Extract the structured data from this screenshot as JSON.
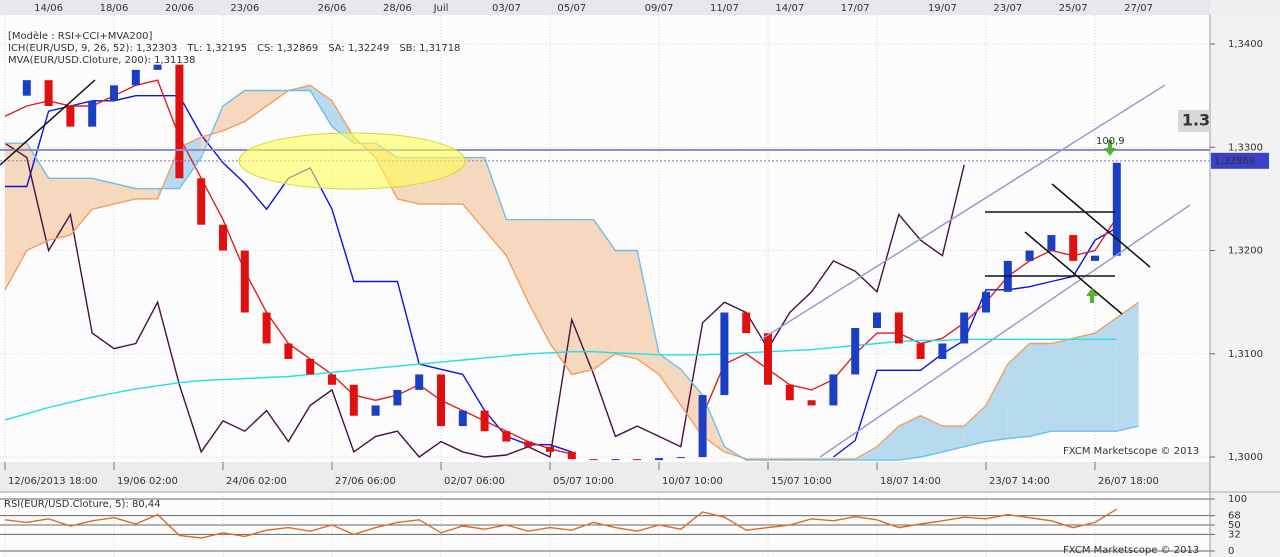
{
  "chart_data": [
    {
      "type": "line",
      "template": "[Modèle : RSI+CCI+MVA200]",
      "indicator_label": "ICH(EUR/USD, 9, 26, 52): 1,32303",
      "indicator_color": "#dd1111",
      "categories": [
        "12/06/2013 18:00",
        null,
        null,
        null,
        null,
        "19/06 02:00",
        null,
        null,
        null,
        null,
        "24/06 02:00",
        null,
        null,
        null,
        null,
        "27/06 06:00",
        null,
        null,
        null,
        null,
        "02/07 06:00",
        null,
        null,
        null,
        null,
        "05/07 10:00",
        null,
        null,
        null,
        null,
        "10/07 10:00",
        null,
        null,
        null,
        null,
        "15/07 10:00",
        null,
        null,
        null,
        null,
        "18/07 14:00",
        null,
        null,
        null,
        null,
        "23/07 14:00",
        null,
        null,
        null,
        null,
        "26/07 18:00",
        null,
        null
      ],
      "top_categories": [
        null,
        null,
        "14/06",
        null,
        null,
        "18/06",
        null,
        null,
        "20/06",
        null,
        null,
        "23/06",
        null,
        null,
        null,
        "26/06",
        null,
        null,
        "28/06",
        null,
        "Juil",
        null,
        null,
        "03/07",
        null,
        null,
        "05/07",
        null,
        null,
        null,
        "09/07",
        null,
        null,
        "11/07",
        null,
        null,
        "14/07",
        null,
        null,
        "17/07",
        null,
        null,
        null,
        "19/07",
        null,
        null,
        "23/07",
        null,
        null,
        "25/07",
        null,
        null,
        "27/07"
      ],
      "ylim": [
        1.29952,
        1.34136
      ],
      "yticks": [
        {
          "value": 1.3,
          "label": "1,3000"
        },
        {
          "value": 1.31,
          "label": "1,3100"
        },
        {
          "value": 1.32,
          "label": "1,3200"
        },
        {
          "value": 1.33,
          "label": "1,3300"
        },
        {
          "value": 1.34,
          "label": "1,3400"
        }
      ],
      "grid": true,
      "cloud_colors": {
        "up": "#b7daef",
        "down": "#f6d8be"
      },
      "series": [
        {
          "style": "candles",
          "color": "#1a3fc4",
          "down_color": "#e01010",
          "values": [
            1.335,
            1.3365,
            1.334,
            1.332,
            1.3345,
            1.336,
            1.3375,
            1.338,
            1.327,
            1.3225,
            1.32,
            1.314,
            1.311,
            1.3095,
            1.308,
            1.307,
            1.304,
            1.305,
            1.3065,
            1.308,
            1.303,
            1.3045,
            1.3025,
            1.3015,
            1.301,
            1.3005,
            1.2998,
            1.2997,
            1.2998,
            1.2997,
            1.2999,
            1.3,
            1.306,
            1.314,
            1.312,
            1.307,
            1.3055,
            1.305,
            1.308,
            1.3125,
            1.314,
            1.311,
            1.3095,
            1.311,
            1.314,
            1.316,
            1.319,
            1.32,
            1.3215,
            1.319,
            1.3195,
            1.3285,
            null
          ]
        },
        {
          "color": "#0a14e0",
          "values": [
            1.3262,
            1.3262,
            1.3335,
            1.334,
            1.3345,
            1.3345,
            1.335,
            1.335,
            1.335,
            1.3312,
            1.3285,
            1.3265,
            1.324,
            1.327,
            1.328,
            1.324,
            1.317,
            1.317,
            1.317,
            1.309,
            1.3085,
            1.308,
            1.3045,
            1.302,
            1.3012,
            1.3012,
            1.3005,
            null,
            null,
            null,
            null,
            null,
            null,
            null,
            null,
            null,
            null,
            null,
            1.3,
            1.3016,
            1.3084,
            1.3084,
            1.3084,
            1.31,
            1.3113,
            1.3162,
            1.3162,
            1.3165,
            1.317,
            1.3175,
            1.321,
            1.3222,
            null
          ]
        },
        {
          "name": "TL: 1,32195",
          "color": "#e02020",
          "values": [
            1.333,
            1.334,
            1.3345,
            1.334,
            1.334,
            1.335,
            1.336,
            1.3365,
            1.331,
            1.327,
            1.323,
            1.318,
            1.314,
            1.311,
            1.3095,
            1.308,
            1.306,
            1.3055,
            1.306,
            1.307,
            1.3055,
            1.3045,
            1.3035,
            1.3025,
            1.3015,
            1.3008,
            1.3003,
            null,
            null,
            null,
            null,
            null,
            1.304,
            1.309,
            1.31,
            1.3085,
            1.307,
            1.3065,
            1.3075,
            1.31,
            1.312,
            1.312,
            1.311,
            1.3115,
            1.313,
            1.315,
            1.3175,
            1.319,
            1.32,
            1.3195,
            1.32,
            1.3232,
            null
          ]
        },
        {
          "name": "CS: 1,32869",
          "color": "#4a1040",
          "values": [
            1.3304,
            1.329,
            1.32,
            1.3235,
            1.312,
            1.3105,
            1.311,
            1.315,
            1.307,
            1.3005,
            1.3035,
            1.3025,
            1.3045,
            1.3015,
            1.305,
            1.3065,
            1.3005,
            1.302,
            1.3025,
            1.3,
            1.3015,
            1.3005,
            1.3,
            1.3002,
            1.301,
            1.3,
            1.3133,
            1.308,
            1.302,
            1.303,
            1.302,
            1.301,
            1.313,
            1.315,
            1.314,
            1.3105,
            1.314,
            1.316,
            1.319,
            1.318,
            1.316,
            1.3235,
            1.321,
            1.3195,
            1.3283,
            null,
            null,
            null,
            null,
            null,
            null,
            null,
            null
          ]
        },
        {
          "name": "SA: 1,32249",
          "color": "#f0a060",
          "cloud": true,
          "values": [
            1.3162,
            1.32,
            1.321,
            1.3215,
            1.324,
            1.3245,
            1.325,
            1.325,
            1.33,
            1.331,
            1.3316,
            1.3325,
            1.334,
            1.3355,
            1.336,
            1.3345,
            1.331,
            1.329,
            1.325,
            1.3245,
            1.3245,
            1.3245,
            1.322,
            1.3195,
            1.315,
            1.311,
            1.308,
            1.3085,
            1.31,
            1.3095,
            1.308,
            1.305,
            1.302,
            1.3005,
            1.2998,
            1.2998,
            1.2998,
            1.2998,
            1.2998,
            1.2998,
            1.301,
            1.303,
            1.304,
            1.303,
            1.303,
            1.305,
            1.309,
            1.311,
            1.311,
            1.3115,
            1.312,
            1.3135,
            1.315
          ]
        },
        {
          "name": "SB: 1,31718",
          "color": "#6cc0e8",
          "cloud": true,
          "values": [
            1.3304,
            1.3304,
            1.327,
            1.327,
            1.327,
            1.3265,
            1.326,
            1.326,
            1.326,
            1.329,
            1.334,
            1.3355,
            1.3355,
            1.3355,
            1.3355,
            1.332,
            1.3304,
            1.3304,
            1.329,
            1.329,
            1.329,
            1.329,
            1.329,
            1.323,
            1.323,
            1.323,
            1.323,
            1.323,
            1.32,
            1.32,
            1.31,
            1.3085,
            1.306,
            1.301,
            1.2997,
            1.2997,
            1.2997,
            1.2997,
            1.2997,
            1.2997,
            1.2997,
            1.2997,
            1.3,
            1.3005,
            1.301,
            1.3015,
            1.3018,
            1.302,
            1.3025,
            1.3025,
            1.3025,
            1.3025,
            1.303
          ]
        },
        {
          "name": "MVA(EUR/USD.Cloture, 200): 1,31138",
          "color": "#20e0e8",
          "values": [
            1.3036,
            1.3042,
            1.3048,
            1.3053,
            1.3058,
            1.3062,
            1.3066,
            1.3069,
            1.3072,
            1.3074,
            1.3075,
            1.3076,
            1.3077,
            1.3078,
            1.308,
            1.3082,
            1.3084,
            1.3086,
            1.3088,
            1.309,
            1.3092,
            1.3094,
            1.3096,
            1.3098,
            1.31,
            1.3101,
            1.3102,
            1.3102,
            1.3101,
            1.31,
            1.3099,
            1.3099,
            1.3099,
            1.31,
            1.3101,
            1.3102,
            1.3103,
            1.3104,
            1.3106,
            1.3108,
            1.311,
            1.3112,
            1.3113,
            1.3113,
            1.3114,
            1.3114,
            1.3114,
            1.3114,
            1.3114,
            1.3114,
            1.3114,
            1.3114,
            null
          ]
        }
      ],
      "price_label": {
        "value": 1.32869,
        "label": "1,32869"
      },
      "zoom_label": "1.3",
      "annotation": "100,9",
      "watermark": "FXCM Marketscope © 2013"
    },
    {
      "type": "line",
      "title": "RSI(EUR/USD.Cloture, 5): 80,44",
      "ylim": [
        0,
        100
      ],
      "yticks": [
        0,
        32,
        50,
        68,
        100
      ],
      "grid": true,
      "watermark": "FXCM Marketscope © 2013",
      "series": [
        {
          "color": "#e06a20",
          "values": [
            60,
            55,
            62,
            48,
            58,
            64,
            52,
            70,
            30,
            25,
            35,
            28,
            40,
            45,
            38,
            50,
            32,
            45,
            55,
            60,
            35,
            48,
            42,
            50,
            38,
            45,
            40,
            55,
            45,
            38,
            50,
            42,
            75,
            65,
            40,
            45,
            50,
            62,
            58,
            66,
            60,
            45,
            52,
            58,
            65,
            62,
            70,
            64,
            58,
            45,
            55,
            80.44,
            null
          ]
        }
      ]
    }
  ]
}
